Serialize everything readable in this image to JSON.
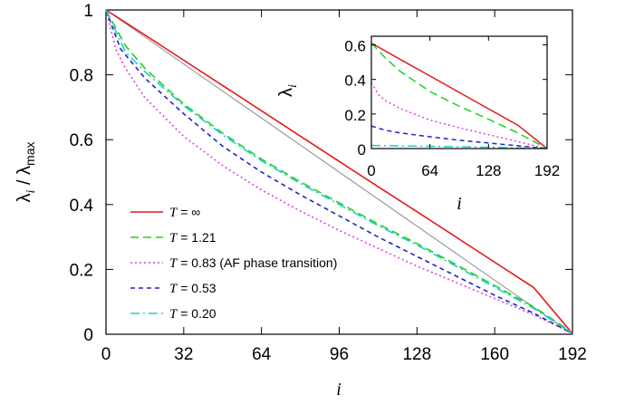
{
  "chart_data": [
    {
      "type": "line",
      "title": "",
      "xlabel": "i",
      "ylabel": "λ_i / λ_max",
      "xlim": [
        0,
        192
      ],
      "ylim": [
        0,
        1
      ],
      "xticks": [
        0,
        32,
        64,
        96,
        128,
        160,
        192
      ],
      "yticks": [
        0,
        0.2,
        0.4,
        0.6,
        0.8,
        1
      ],
      "ytick_labels": [
        "0",
        "0.2",
        "0.4",
        "0.6",
        "0.8",
        "1"
      ],
      "legend_placement": "lower-left",
      "series": [
        {
          "name": "T = ∞",
          "color": "#e41a1c",
          "dash": "solid",
          "points": [
            [
              0,
              1.0
            ],
            [
              16,
              0.923
            ],
            [
              32,
              0.845
            ],
            [
              48,
              0.767
            ],
            [
              64,
              0.689
            ],
            [
              80,
              0.611
            ],
            [
              96,
              0.533
            ],
            [
              112,
              0.455
            ],
            [
              128,
              0.378
            ],
            [
              144,
              0.3
            ],
            [
              160,
              0.222
            ],
            [
              176,
              0.144
            ],
            [
              190,
              0.02
            ],
            [
              192,
              0.0
            ]
          ]
        },
        {
          "name": "T = 1.21",
          "color": "#1fd31f",
          "dash": "dashed",
          "points": [
            [
              0,
              1.0
            ],
            [
              8,
              0.89
            ],
            [
              16,
              0.82
            ],
            [
              32,
              0.71
            ],
            [
              48,
              0.62
            ],
            [
              64,
              0.54
            ],
            [
              80,
              0.47
            ],
            [
              96,
              0.405
            ],
            [
              112,
              0.34
            ],
            [
              128,
              0.28
            ],
            [
              144,
              0.215
            ],
            [
              160,
              0.15
            ],
            [
              176,
              0.085
            ],
            [
              190,
              0.015
            ],
            [
              192,
              0.0
            ]
          ]
        },
        {
          "name": "T = 0.83 (AF phase transition)",
          "color": "#e040e0",
          "dash": "dotted",
          "points": [
            [
              0,
              1.0
            ],
            [
              4,
              0.88
            ],
            [
              8,
              0.82
            ],
            [
              16,
              0.73
            ],
            [
              32,
              0.61
            ],
            [
              48,
              0.52
            ],
            [
              64,
              0.445
            ],
            [
              80,
              0.38
            ],
            [
              96,
              0.32
            ],
            [
              112,
              0.265
            ],
            [
              128,
              0.21
            ],
            [
              144,
              0.16
            ],
            [
              160,
              0.11
            ],
            [
              176,
              0.06
            ],
            [
              190,
              0.01
            ],
            [
              192,
              0.0
            ]
          ]
        },
        {
          "name": "T = 0.53",
          "color": "#2222cc",
          "dash": "short-dashed",
          "points": [
            [
              0,
              1.0
            ],
            [
              6,
              0.88
            ],
            [
              16,
              0.79
            ],
            [
              32,
              0.68
            ],
            [
              48,
              0.58
            ],
            [
              64,
              0.5
            ],
            [
              80,
              0.43
            ],
            [
              96,
              0.365
            ],
            [
              112,
              0.3
            ],
            [
              128,
              0.24
            ],
            [
              144,
              0.18
            ],
            [
              160,
              0.12
            ],
            [
              176,
              0.065
            ],
            [
              190,
              0.01
            ],
            [
              192,
              0.0
            ]
          ]
        },
        {
          "name": "T = 0.20",
          "color": "#22cccc",
          "dash": "dash-dot",
          "points": [
            [
              0,
              1.0
            ],
            [
              8,
              0.87
            ],
            [
              16,
              0.81
            ],
            [
              32,
              0.705
            ],
            [
              48,
              0.615
            ],
            [
              64,
              0.535
            ],
            [
              80,
              0.465
            ],
            [
              96,
              0.4
            ],
            [
              112,
              0.335
            ],
            [
              128,
              0.275
            ],
            [
              144,
              0.21
            ],
            [
              160,
              0.145
            ],
            [
              176,
              0.08
            ],
            [
              190,
              0.012
            ],
            [
              192,
              0.0
            ]
          ]
        }
      ],
      "reference_line": {
        "color": "#888888",
        "points": [
          [
            0,
            1.0
          ],
          [
            192,
            0.0
          ]
        ]
      }
    },
    {
      "type": "line",
      "title": "",
      "xlabel": "i",
      "ylabel": "λ_i",
      "xlim": [
        0,
        192
      ],
      "ylim": [
        0,
        0.65
      ],
      "xticks": [
        0,
        64,
        128,
        192
      ],
      "yticks": [
        0,
        0.2,
        0.4,
        0.6
      ],
      "ytick_labels": [
        "0",
        "0.2",
        "0.4",
        "0.6"
      ],
      "series": [
        {
          "name": "T = ∞",
          "color": "#e41a1c",
          "dash": "solid",
          "points": [
            [
              0,
              0.61
            ],
            [
              32,
              0.515
            ],
            [
              64,
              0.42
            ],
            [
              96,
              0.325
            ],
            [
              128,
              0.23
            ],
            [
              160,
              0.135
            ],
            [
              192,
              0.0
            ]
          ]
        },
        {
          "name": "T = 1.21",
          "color": "#1fd31f",
          "dash": "dashed",
          "points": [
            [
              0,
              0.61
            ],
            [
              16,
              0.52
            ],
            [
              32,
              0.445
            ],
            [
              64,
              0.33
            ],
            [
              96,
              0.245
            ],
            [
              128,
              0.17
            ],
            [
              160,
              0.09
            ],
            [
              192,
              0.0
            ]
          ]
        },
        {
          "name": "T = 0.83 (AF phase transition)",
          "color": "#e040e0",
          "dash": "dotted",
          "points": [
            [
              0,
              0.38
            ],
            [
              8,
              0.31
            ],
            [
              16,
              0.275
            ],
            [
              32,
              0.23
            ],
            [
              64,
              0.165
            ],
            [
              96,
              0.12
            ],
            [
              128,
              0.08
            ],
            [
              160,
              0.04
            ],
            [
              192,
              0.0
            ]
          ]
        },
        {
          "name": "T = 0.53",
          "color": "#2222cc",
          "dash": "short-dashed",
          "points": [
            [
              0,
              0.13
            ],
            [
              16,
              0.105
            ],
            [
              32,
              0.09
            ],
            [
              64,
              0.068
            ],
            [
              96,
              0.048
            ],
            [
              128,
              0.032
            ],
            [
              160,
              0.016
            ],
            [
              192,
              0.0
            ]
          ]
        },
        {
          "name": "T = 0.20",
          "color": "#22cccc",
          "dash": "dash-dot",
          "points": [
            [
              0,
              0.018
            ],
            [
              64,
              0.013
            ],
            [
              128,
              0.008
            ],
            [
              192,
              0.0
            ]
          ]
        }
      ]
    }
  ]
}
